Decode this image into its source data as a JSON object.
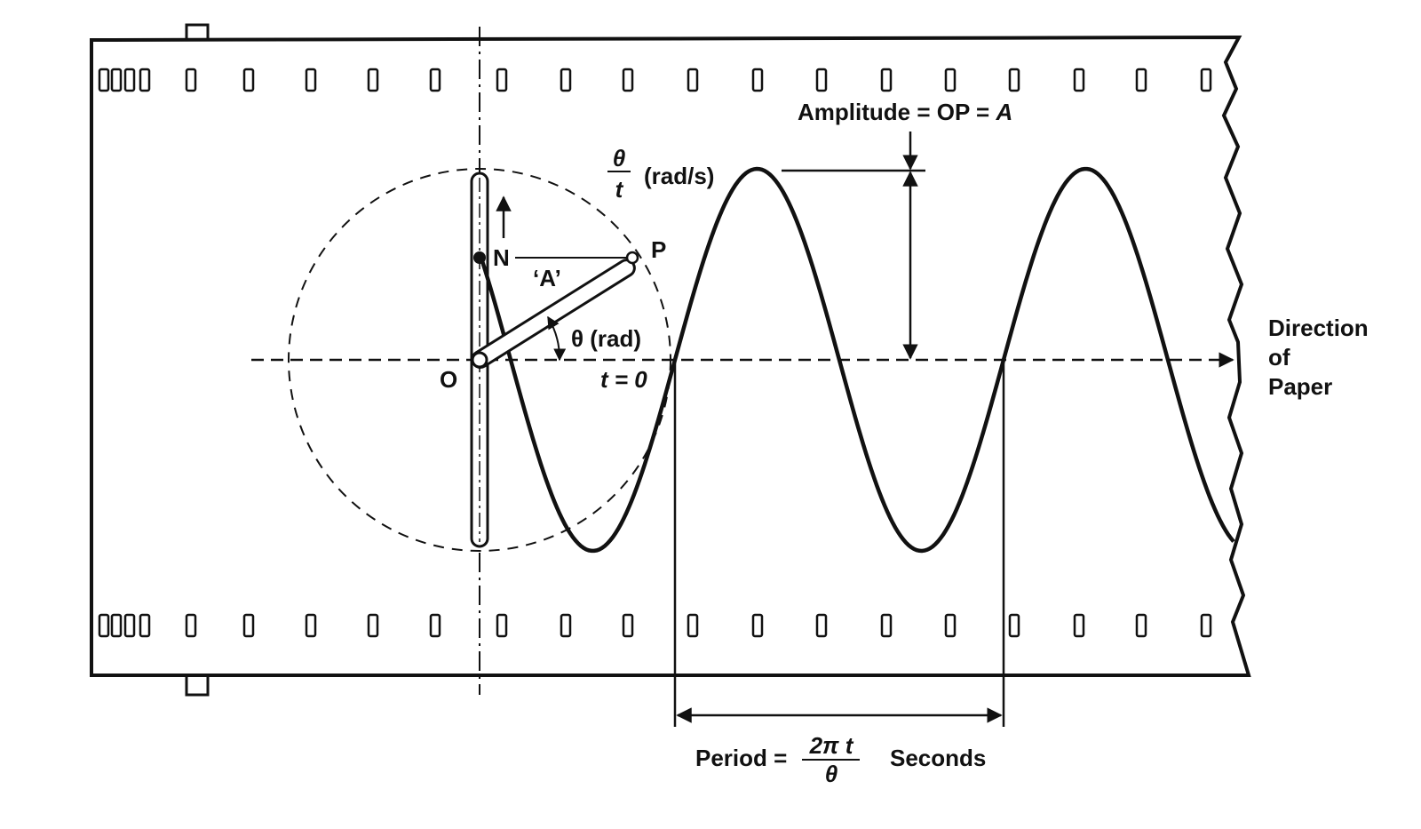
{
  "labels": {
    "amplitude": "Amplitude = OP = ",
    "amplitude_symbol": "A",
    "rate_numerator": "θ",
    "rate_denominator": "t",
    "rate_unit": "(rad/s)",
    "point_p": "P",
    "point_n": "N",
    "point_o": "O",
    "radius": "‘A’",
    "angle": "θ (rad)",
    "time_zero": "t = 0",
    "direction": [
      "Direction",
      "of",
      "Paper"
    ],
    "period_prefix": "Period =",
    "period_numerator": "2π t",
    "period_denominator": "θ",
    "period_unit": "Seconds"
  }
}
